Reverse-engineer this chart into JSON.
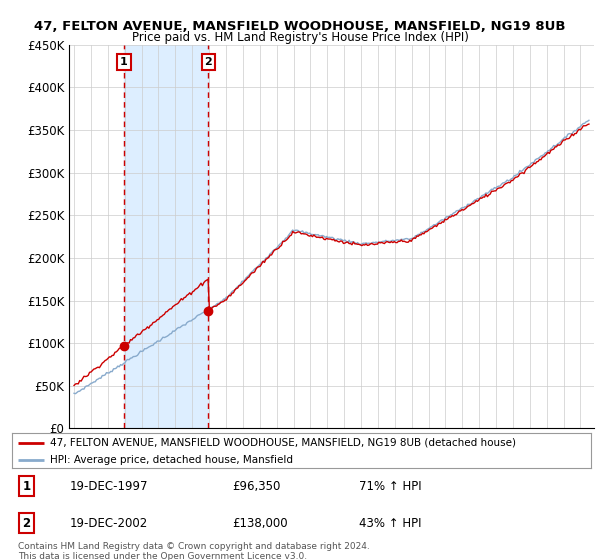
{
  "title1": "47, FELTON AVENUE, MANSFIELD WOODHOUSE, MANSFIELD, NG19 8UB",
  "title2": "Price paid vs. HM Land Registry's House Price Index (HPI)",
  "ylabel_ticks": [
    "£0",
    "£50K",
    "£100K",
    "£150K",
    "£200K",
    "£250K",
    "£300K",
    "£350K",
    "£400K",
    "£450K"
  ],
  "ytick_vals": [
    0,
    50000,
    100000,
    150000,
    200000,
    250000,
    300000,
    350000,
    400000,
    450000
  ],
  "ylim": [
    0,
    450000
  ],
  "sale1_year": 1997.96,
  "sale1_price": 96350,
  "sale2_year": 2002.96,
  "sale2_price": 138000,
  "red_color": "#cc0000",
  "blue_color": "#88aacc",
  "span_color": "#ddeeff",
  "legend_line1": "47, FELTON AVENUE, MANSFIELD WOODHOUSE, MANSFIELD, NG19 8UB (detached house)",
  "legend_line2": "HPI: Average price, detached house, Mansfield",
  "table_row1": [
    "1",
    "19-DEC-1997",
    "£96,350",
    "71% ↑ HPI"
  ],
  "table_row2": [
    "2",
    "19-DEC-2002",
    "£138,000",
    "43% ↑ HPI"
  ],
  "footer": "Contains HM Land Registry data © Crown copyright and database right 2024.\nThis data is licensed under the Open Government Licence v3.0.",
  "bg_color": "#ffffff",
  "grid_color": "#cccccc"
}
